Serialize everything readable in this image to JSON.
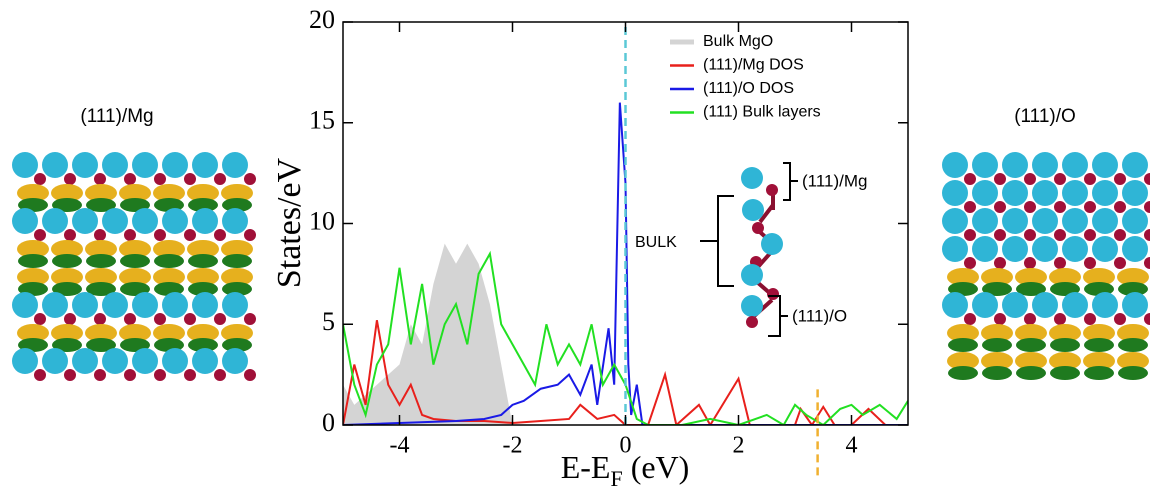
{
  "side_labels": [
    "(111)/Mg",
    "(111)/O"
  ],
  "chart_data": {
    "type": "line",
    "ylabel": "States/eV",
    "xlabel": {
      "main": "E-E",
      "sub": "F",
      "rest": " (eV)"
    },
    "xlim": [
      -5,
      5
    ],
    "xticks": [
      -4,
      -2,
      0,
      2,
      4
    ],
    "ylim": [
      0,
      20
    ],
    "yticks": [
      0,
      5,
      10,
      15,
      20
    ],
    "series": [
      {
        "name": "Bulk MgO",
        "color": "#d4d4d4",
        "fill": true,
        "x": [
          -5,
          -4.8,
          -4.6,
          -4.4,
          -4.2,
          -4.0,
          -3.8,
          -3.6,
          -3.4,
          -3.2,
          -3.0,
          -2.8,
          -2.6,
          -2.4,
          -2.2,
          -2.0
        ],
        "values": [
          2,
          1,
          1.5,
          2,
          2.5,
          3,
          5,
          4,
          7,
          9,
          8,
          9,
          8,
          6,
          3,
          0
        ]
      },
      {
        "name": "(111)/Mg DOS",
        "color": "#e8201c",
        "x": [
          -5,
          -4.8,
          -4.6,
          -4.4,
          -4.2,
          -4.0,
          -3.8,
          -3.6,
          -3.4,
          -3.0,
          -2.5,
          -2.0,
          -1.5,
          -1.0,
          -0.8,
          -0.5,
          -0.2,
          0,
          0.4,
          0.7,
          0.9,
          1.3,
          1.5,
          2.0,
          2.2,
          3.0,
          3.1,
          3.3,
          3.5,
          3.7,
          4.0,
          4.3,
          4.6,
          5.0
        ],
        "values": [
          0,
          3,
          1,
          5.2,
          2,
          1,
          2,
          0.5,
          0.3,
          0.2,
          0.2,
          0.1,
          0.2,
          0.3,
          1,
          0.3,
          0.5,
          0,
          0,
          2.5,
          0,
          1,
          0,
          2.3,
          0,
          0,
          0.8,
          0,
          0.9,
          0,
          0,
          0.8,
          0,
          0
        ]
      },
      {
        "name": "(111)/O DOS",
        "color": "#1a1ae6",
        "x": [
          -5,
          -4,
          -3,
          -2.5,
          -2.2,
          -2.0,
          -1.8,
          -1.5,
          -1.2,
          -1.0,
          -0.8,
          -0.6,
          -0.5,
          -0.3,
          -0.2,
          -0.1,
          0,
          0.05,
          0.1,
          0.2,
          0.3,
          5
        ],
        "values": [
          0,
          0.1,
          0.2,
          0.3,
          0.5,
          1,
          1.2,
          1.8,
          2,
          2.5,
          1.5,
          3,
          1,
          4.8,
          2,
          16,
          12,
          3,
          0.5,
          2,
          0,
          0
        ]
      },
      {
        "name": "(111) Bulk layers",
        "color": "#22e022",
        "x": [
          -5,
          -4.8,
          -4.6,
          -4.4,
          -4.2,
          -4.0,
          -3.8,
          -3.6,
          -3.4,
          -3.2,
          -3.0,
          -2.8,
          -2.6,
          -2.4,
          -2.2,
          -2.0,
          -1.8,
          -1.6,
          -1.4,
          -1.2,
          -1.0,
          -0.8,
          -0.6,
          -0.4,
          -0.2,
          0,
          0.2,
          0.4,
          1.0,
          1.5,
          2.0,
          2.5,
          2.8,
          3.0,
          3.2,
          3.5,
          3.8,
          4.0,
          4.2,
          4.5,
          4.8,
          5.0
        ],
        "values": [
          5,
          2,
          0.5,
          3,
          4,
          7.8,
          4,
          7,
          3,
          5,
          6,
          4,
          7.5,
          8.5,
          5,
          4,
          3,
          2,
          5,
          3,
          4,
          3,
          5,
          2,
          3,
          2,
          0.3,
          0,
          0,
          0.3,
          0,
          0.5,
          0,
          1,
          0.5,
          0,
          0.8,
          1,
          0.5,
          1,
          0.3,
          1.2
        ]
      }
    ],
    "vlines": [
      {
        "x": 0,
        "color": "#5bc8d6"
      },
      {
        "x": 3.4,
        "color": "#f0b030",
        "y": [
          -2.5,
          2
        ]
      }
    ],
    "annotations": [
      "(111)/Mg",
      "BULK",
      "(111)/O"
    ]
  }
}
